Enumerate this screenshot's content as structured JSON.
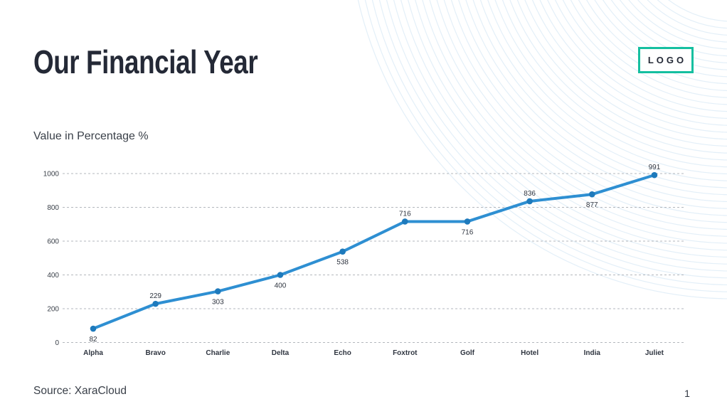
{
  "slide": {
    "title": "Our Financial Year",
    "logo_text": "LOGO",
    "chart_heading": "Value in Percentage %",
    "source": "Source: XaraCloud",
    "page_number": "1"
  },
  "colors": {
    "accent_teal": "#15BFA0",
    "line_blue": "#2E8FD2",
    "marker_blue": "#1E7ABC",
    "grid_gray": "#B3B7BD",
    "text_dark": "#2F3540",
    "text_body": "#3A4049",
    "title_text": "#242936",
    "arc_light_blue": "#E3EFF8"
  },
  "chart_data": {
    "type": "line",
    "title": "Value in Percentage %",
    "categories": [
      "Alpha",
      "Bravo",
      "Charlie",
      "Delta",
      "Echo",
      "Foxtrot",
      "Golf",
      "Hotel",
      "India",
      "Juliet"
    ],
    "values": [
      82,
      229,
      303,
      400,
      538,
      716,
      716,
      836,
      877,
      991
    ],
    "label_position": [
      "below",
      "above",
      "below",
      "below",
      "below",
      "above",
      "below",
      "above",
      "below",
      "above"
    ],
    "xlabel": "",
    "ylabel": "",
    "ylim": [
      0,
      1000
    ],
    "yticks": [
      0,
      200,
      400,
      600,
      800,
      1000
    ],
    "grid": "horizontal-dashed",
    "legend": "none",
    "series_name": "Value in Percentage %"
  }
}
